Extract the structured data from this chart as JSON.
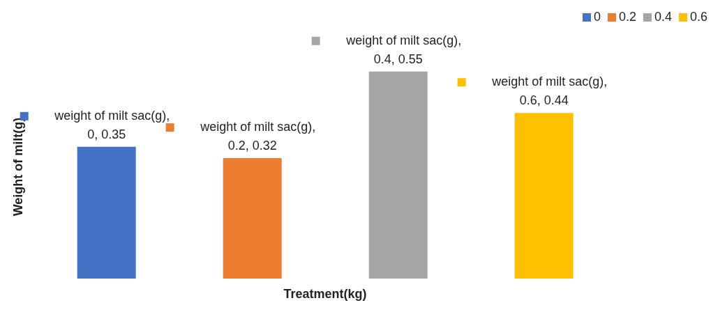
{
  "chart_data": {
    "type": "bar",
    "xlabel": "Treatment(kg)",
    "ylabel": "Weight of milt(g)",
    "categories": [
      null,
      null,
      null,
      null
    ],
    "stacked": true,
    "series": [
      {
        "name": "0",
        "color": "#4472c4",
        "values": [
          0.35,
          null,
          null,
          null
        ],
        "value_labels": [
          "weight of milt sac(g), 0, 0.35",
          null,
          null,
          null
        ]
      },
      {
        "name": "0.2",
        "color": "#ed7d31",
        "values": [
          null,
          0.32,
          null,
          null
        ],
        "value_labels": [
          null,
          "weight of milt sac(g), 0.2, 0.32",
          null,
          null
        ]
      },
      {
        "name": "0.4",
        "color": "#a5a5a5",
        "values": [
          null,
          null,
          0.55,
          null
        ],
        "value_labels": [
          null,
          null,
          "weight of milt sac(g), 0.4, 0.55",
          null
        ]
      },
      {
        "name": "0.6",
        "color": "#ffc000",
        "values": [
          null,
          null,
          null,
          0.44
        ],
        "value_labels": [
          null,
          null,
          null,
          "weight of milt sac(g), 0.6, 0.44"
        ]
      }
    ],
    "legend": "top right",
    "tick_labels": false
  }
}
